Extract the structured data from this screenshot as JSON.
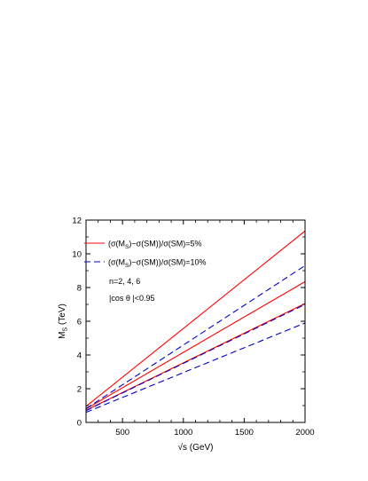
{
  "chart_data": {
    "type": "line",
    "xlabel": "√s   (GeV)",
    "ylabel": "M",
    "ylabel_subscript": "S",
    "ylabel_unit": "(TeV)",
    "xlim": [
      200,
      2000
    ],
    "ylim": [
      0,
      12
    ],
    "xticks": [
      500,
      1000,
      1500,
      2000
    ],
    "yticks": [
      0,
      2,
      4,
      6,
      8,
      10,
      12
    ],
    "grid": false,
    "legend_placement": "top-left",
    "legend": [
      {
        "style": "solid",
        "color": "#ff0000",
        "prefix": "(σ(M",
        "sub": "S",
        "suffix": ")−σ(SM))/σ(SM)=5%"
      },
      {
        "style": "dashed",
        "color": "#0000cc",
        "prefix": "(σ(M",
        "sub": "S",
        "suffix": ")−σ(SM))/σ(SM)=10%"
      }
    ],
    "annotations": [
      "n=2, 4, 6",
      "|cos θ |<0.95"
    ],
    "series": [
      {
        "style": "solid",
        "color": "#ff0000",
        "x": [
          200,
          2000
        ],
        "y": [
          0.95,
          11.35
        ]
      },
      {
        "style": "solid",
        "color": "#ff0000",
        "x": [
          200,
          2000
        ],
        "y": [
          0.8,
          8.35
        ]
      },
      {
        "style": "solid",
        "color": "#ff0000",
        "x": [
          200,
          2000
        ],
        "y": [
          0.72,
          7.05
        ]
      },
      {
        "style": "dashed",
        "color": "#0000cc",
        "x": [
          200,
          2000
        ],
        "y": [
          0.82,
          9.3
        ]
      },
      {
        "style": "dashed",
        "color": "#0000cc",
        "x": [
          200,
          2000
        ],
        "y": [
          0.7,
          7.0
        ]
      },
      {
        "style": "dashed",
        "color": "#0000cc",
        "x": [
          200,
          2000
        ],
        "y": [
          0.6,
          5.9
        ]
      }
    ]
  }
}
